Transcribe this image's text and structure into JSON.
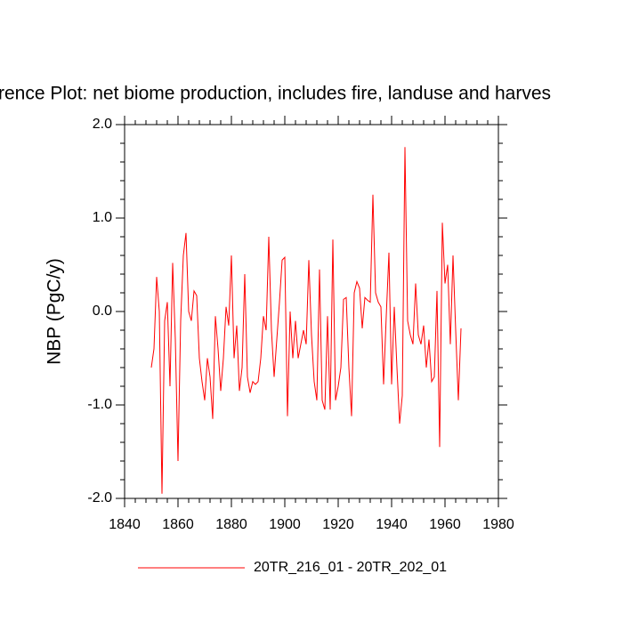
{
  "chart_data": {
    "type": "line",
    "title": "rence Plot: net biome production, includes fire, landuse and harves",
    "y_label": "NBP  (PgC/y)",
    "x": [
      1850,
      1851,
      1852,
      1853,
      1854,
      1855,
      1856,
      1857,
      1858,
      1859,
      1860,
      1861,
      1862,
      1863,
      1864,
      1865,
      1866,
      1867,
      1868,
      1869,
      1870,
      1871,
      1872,
      1873,
      1874,
      1875,
      1876,
      1877,
      1878,
      1879,
      1880,
      1881,
      1882,
      1883,
      1884,
      1885,
      1886,
      1887,
      1888,
      1889,
      1890,
      1891,
      1892,
      1893,
      1894,
      1895,
      1896,
      1897,
      1898,
      1899,
      1900,
      1901,
      1902,
      1903,
      1904,
      1905,
      1906,
      1907,
      1908,
      1909,
      1910,
      1911,
      1912,
      1913,
      1914,
      1915,
      1916,
      1917,
      1918,
      1919,
      1920,
      1921,
      1922,
      1923,
      1924,
      1925,
      1926,
      1927,
      1928,
      1929,
      1930,
      1931,
      1932,
      1933,
      1934,
      1935,
      1936,
      1937,
      1938,
      1939,
      1940,
      1941,
      1942,
      1943,
      1944,
      1945,
      1946,
      1947,
      1948,
      1949,
      1950,
      1951,
      1952,
      1953,
      1954,
      1955,
      1956,
      1957,
      1958,
      1959,
      1960,
      1961,
      1962,
      1963,
      1964,
      1965,
      1966
    ],
    "series": [
      {
        "name": "20TR_216_01 - 20TR_202_01",
        "color": "#ff0000",
        "values": [
          -0.6,
          -0.4,
          0.37,
          0.0,
          -1.95,
          -0.1,
          0.1,
          -0.8,
          0.52,
          -0.3,
          -1.6,
          -0.1,
          0.6,
          0.84,
          0.0,
          -0.1,
          0.22,
          0.17,
          -0.5,
          -0.75,
          -0.95,
          -0.5,
          -0.7,
          -1.15,
          -0.05,
          -0.4,
          -0.85,
          -0.5,
          0.05,
          -0.15,
          0.6,
          -0.5,
          -0.15,
          -0.85,
          -0.6,
          0.4,
          -0.7,
          -0.87,
          -0.75,
          -0.78,
          -0.75,
          -0.5,
          -0.05,
          -0.2,
          0.8,
          -0.2,
          -0.7,
          -0.3,
          0.1,
          0.55,
          0.58,
          -1.12,
          0.0,
          -0.5,
          -0.1,
          -0.5,
          -0.35,
          -0.2,
          -0.35,
          0.55,
          -0.25,
          -0.75,
          -0.95,
          0.45,
          -0.95,
          -1.05,
          -0.05,
          -1.05,
          0.77,
          -0.95,
          -0.8,
          -0.6,
          0.13,
          0.15,
          -0.6,
          -1.12,
          0.2,
          0.32,
          0.25,
          -0.18,
          0.15,
          0.12,
          0.1,
          1.25,
          0.2,
          0.1,
          0.05,
          -0.78,
          -0.05,
          0.63,
          -0.78,
          0.05,
          -0.6,
          -1.2,
          -0.9,
          1.76,
          -0.1,
          -0.25,
          -0.35,
          0.3,
          -0.25,
          -0.35,
          -0.15,
          -0.6,
          -0.3,
          -0.75,
          -0.7,
          0.22,
          -1.45,
          0.95,
          0.3,
          0.5,
          -0.35,
          0.6,
          -0.2,
          -0.95,
          -0.18
        ]
      }
    ],
    "xlim": [
      1840,
      1980
    ],
    "xticks": [
      1840,
      1860,
      1880,
      1900,
      1920,
      1940,
      1960,
      1980
    ],
    "ylim": [
      -2,
      2
    ],
    "yticks": [
      {
        "value": -2,
        "label": "-2.0"
      },
      {
        "value": -1,
        "label": "-1.0"
      },
      {
        "value": 0,
        "label": "0.0"
      },
      {
        "value": 1,
        "label": "1.0"
      },
      {
        "value": 2,
        "label": "2.0"
      }
    ],
    "legend": "bottom"
  }
}
